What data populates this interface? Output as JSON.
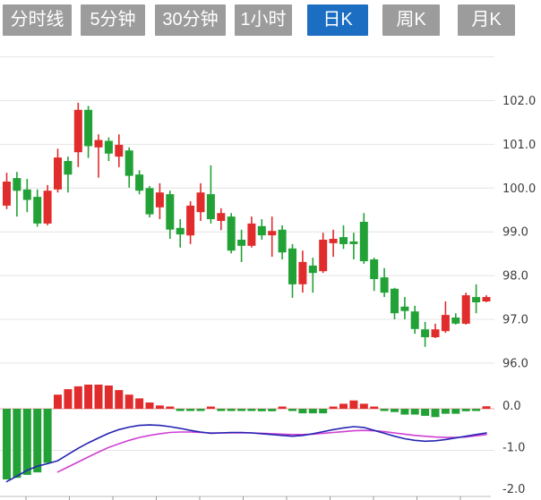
{
  "toolbar": {
    "tabs": [
      {
        "label": "分时线",
        "active": false
      },
      {
        "label": "5分钟",
        "active": false
      },
      {
        "label": "30分钟",
        "active": false
      },
      {
        "label": "1小时",
        "active": false
      },
      {
        "label": "日K",
        "active": true
      },
      {
        "label": "周K",
        "active": false
      },
      {
        "label": "月K",
        "active": false
      }
    ]
  },
  "colors": {
    "up": "#e02c2c",
    "down": "#22a236",
    "dif_line": "#2424b2",
    "dea_line": "#cf3fd3",
    "zero_line": "#f0a0a0",
    "grid": "#e4e4e4",
    "axis_text": "#3c3c3c",
    "x_axis_line": "#bbbbbb",
    "x_axis_tick": "#999999",
    "tab_bg": "#9c9c9c",
    "tab_active_bg": "#1b6ec2",
    "tab_text": "#ffffff"
  },
  "price_axis": {
    "gridlines": [
      {
        "v": 103,
        "label": ""
      },
      {
        "v": 102,
        "label": "102.0"
      },
      {
        "v": 101,
        "label": "101.0"
      },
      {
        "v": 100,
        "label": "100.0"
      },
      {
        "v": 99,
        "label": "99.0"
      },
      {
        "v": 98,
        "label": "98.0"
      },
      {
        "v": 97,
        "label": "97.0"
      },
      {
        "v": 96,
        "label": "96.0"
      }
    ],
    "range": [
      95.9,
      103.1
    ]
  },
  "macd_axis": {
    "gridlines": [
      {
        "v": 0,
        "label": "0.0",
        "style": "zero"
      },
      {
        "v": -1,
        "label": "-1.0",
        "style": "grid"
      },
      {
        "v": -2,
        "label": "-2.0",
        "style": "none"
      }
    ],
    "range": [
      -2.1,
      0.7
    ]
  },
  "chart_data": {
    "type": "candlestick+macd",
    "title": "日K (daily K-line) with MACD sub-chart",
    "candles_ohlc": [
      [
        99.6,
        100.35,
        99.52,
        100.15
      ],
      [
        100.23,
        100.37,
        99.35,
        99.94
      ],
      [
        99.97,
        100.21,
        99.45,
        99.73
      ],
      [
        99.8,
        99.97,
        99.12,
        99.19
      ],
      [
        99.19,
        100.07,
        99.15,
        99.94
      ],
      [
        99.97,
        100.9,
        99.9,
        100.7
      ],
      [
        100.62,
        100.72,
        99.9,
        100.31
      ],
      [
        100.82,
        101.95,
        100.48,
        101.79
      ],
      [
        101.79,
        101.88,
        100.69,
        100.96
      ],
      [
        100.93,
        101.23,
        100.24,
        101.1
      ],
      [
        101.08,
        101.16,
        100.62,
        100.79
      ],
      [
        100.72,
        101.23,
        100.48,
        100.99
      ],
      [
        100.86,
        100.93,
        100.01,
        100.28
      ],
      [
        100.31,
        100.41,
        99.86,
        99.94
      ],
      [
        100.0,
        100.05,
        99.33,
        99.4
      ],
      [
        99.56,
        100.11,
        99.29,
        99.9
      ],
      [
        99.86,
        99.94,
        98.84,
        99.05
      ],
      [
        99.09,
        99.29,
        98.64,
        98.94
      ],
      [
        98.92,
        99.7,
        98.72,
        99.6
      ],
      [
        99.45,
        100.11,
        99.25,
        99.9
      ],
      [
        99.86,
        100.52,
        99.19,
        99.29
      ],
      [
        99.25,
        99.54,
        99.04,
        99.43
      ],
      [
        99.35,
        99.43,
        98.51,
        98.57
      ],
      [
        98.82,
        99.05,
        98.31,
        98.68
      ],
      [
        98.68,
        99.35,
        98.64,
        99.19
      ],
      [
        99.13,
        99.29,
        98.82,
        98.92
      ],
      [
        98.92,
        99.35,
        98.43,
        99.02
      ],
      [
        99.05,
        99.15,
        98.37,
        98.53
      ],
      [
        98.62,
        98.72,
        97.49,
        97.8
      ],
      [
        97.8,
        98.57,
        97.61,
        98.31
      ],
      [
        98.23,
        98.41,
        97.61,
        98.06
      ],
      [
        98.1,
        98.98,
        98.06,
        98.82
      ],
      [
        98.74,
        99.05,
        98.43,
        98.84
      ],
      [
        98.88,
        99.15,
        98.61,
        98.72
      ],
      [
        98.78,
        98.98,
        98.37,
        98.72
      ],
      [
        99.23,
        99.43,
        98.27,
        98.33
      ],
      [
        98.37,
        98.41,
        97.65,
        97.92
      ],
      [
        97.96,
        98.17,
        97.51,
        97.61
      ],
      [
        97.7,
        97.72,
        97.0,
        97.14
      ],
      [
        97.29,
        97.51,
        97.0,
        97.19
      ],
      [
        97.18,
        97.31,
        96.67,
        96.78
      ],
      [
        96.77,
        96.94,
        96.37,
        96.59
      ],
      [
        96.59,
        96.9,
        96.57,
        96.77
      ],
      [
        96.73,
        97.41,
        96.69,
        97.1
      ],
      [
        97.04,
        97.14,
        96.88,
        96.9
      ],
      [
        96.9,
        97.61,
        96.88,
        97.55
      ],
      [
        97.51,
        97.8,
        97.14,
        97.39
      ],
      [
        97.41,
        97.55,
        97.39,
        97.51
      ]
    ],
    "macd_hist": [
      -1.7,
      -1.66,
      -1.59,
      -1.53,
      -1.3,
      0.34,
      0.47,
      0.54,
      0.58,
      0.58,
      0.56,
      0.45,
      0.34,
      0.25,
      0.15,
      0.08,
      0.03,
      -0.04,
      -0.05,
      -0.05,
      0.03,
      -0.03,
      -0.03,
      -0.04,
      -0.05,
      -0.06,
      -0.06,
      0.04,
      -0.02,
      -0.11,
      -0.11,
      -0.11,
      0.05,
      0.12,
      0.2,
      0.12,
      0.05,
      -0.04,
      -0.08,
      -0.14,
      -0.14,
      -0.17,
      -0.2,
      -0.12,
      -0.12,
      -0.06,
      -0.05,
      0.06
    ],
    "dif": [
      -1.75,
      -1.62,
      -1.48,
      -1.38,
      -1.32,
      -1.25,
      -1.1,
      -0.95,
      -0.82,
      -0.7,
      -0.59,
      -0.5,
      -0.44,
      -0.4,
      -0.39,
      -0.4,
      -0.43,
      -0.47,
      -0.52,
      -0.56,
      -0.59,
      -0.58,
      -0.57,
      -0.57,
      -0.58,
      -0.6,
      -0.62,
      -0.64,
      -0.66,
      -0.64,
      -0.6,
      -0.55,
      -0.5,
      -0.46,
      -0.43,
      -0.45,
      -0.52,
      -0.59,
      -0.66,
      -0.72,
      -0.76,
      -0.78,
      -0.77,
      -0.74,
      -0.7,
      -0.66,
      -0.62,
      -0.58
    ],
    "dea": [
      null,
      null,
      null,
      null,
      null,
      -1.52,
      -1.4,
      -1.28,
      -1.16,
      -1.04,
      -0.93,
      -0.84,
      -0.76,
      -0.69,
      -0.64,
      -0.6,
      -0.57,
      -0.56,
      -0.56,
      -0.57,
      -0.58,
      -0.58,
      -0.58,
      -0.58,
      -0.58,
      -0.59,
      -0.6,
      -0.61,
      -0.62,
      -0.62,
      -0.61,
      -0.59,
      -0.57,
      -0.55,
      -0.53,
      -0.52,
      -0.53,
      -0.55,
      -0.58,
      -0.61,
      -0.64,
      -0.66,
      -0.68,
      -0.69,
      -0.69,
      -0.68,
      -0.65,
      -0.62
    ]
  }
}
